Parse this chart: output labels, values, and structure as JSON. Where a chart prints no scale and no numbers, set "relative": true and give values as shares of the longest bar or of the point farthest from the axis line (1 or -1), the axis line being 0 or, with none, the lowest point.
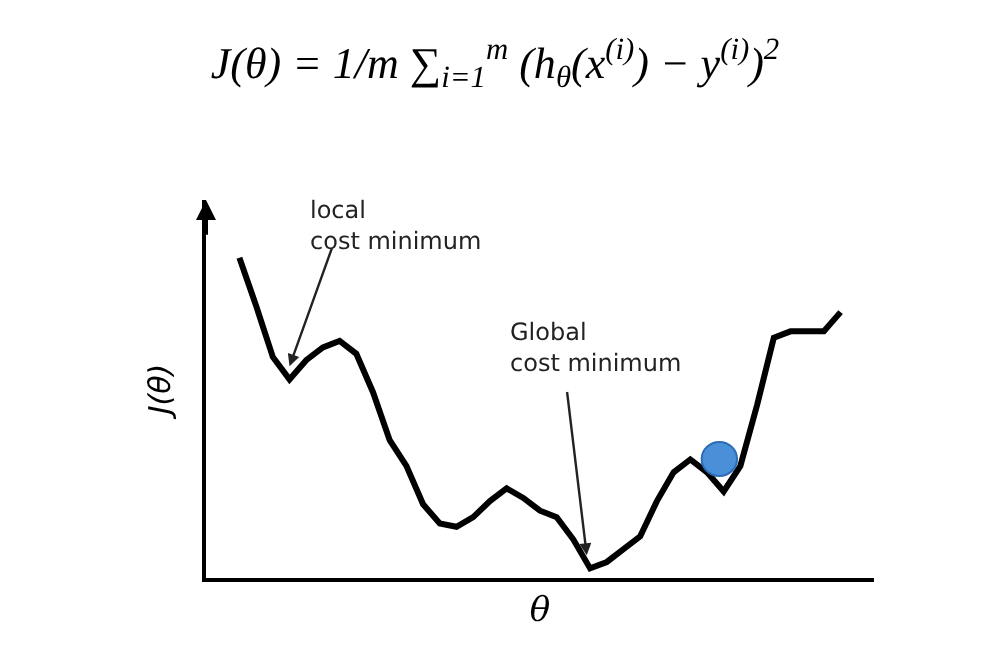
{
  "chart_data": {
    "type": "line",
    "relative": true,
    "title": "J(θ) = 1/m ∑$_{i=1}$$^{m}$ (h$_{θ}$(x$^{(i)}$) − y$^{(i)}$)$^{2}$",
    "xlabel": "θ",
    "ylabel": "J(θ)",
    "categories": [
      null,
      null,
      null,
      null,
      null,
      null,
      null,
      null,
      null,
      null,
      null,
      null,
      null,
      null,
      null,
      null,
      null,
      null,
      null,
      null,
      null,
      null,
      null,
      null,
      null,
      null,
      null,
      null,
      null,
      null,
      null,
      null,
      null,
      null,
      null,
      null,
      null
    ],
    "series": [
      {
        "color": "#000000",
        "values": [
          1.0,
          0.85,
          0.69,
          0.62,
          0.68,
          0.72,
          0.74,
          0.7,
          0.58,
          0.43,
          0.35,
          0.23,
          0.17,
          0.16,
          0.19,
          0.24,
          0.28,
          0.25,
          0.21,
          0.19,
          0.12,
          0.03,
          0.05,
          0.09,
          0.13,
          0.24,
          0.33,
          0.37,
          0.33,
          0.27,
          0.35,
          0.54,
          0.75,
          0.77,
          0.77,
          0.77,
          0.83
        ]
      }
    ],
    "annotations": [
      "local\ncost minimum",
      "Global\ncost minimum"
    ],
    "grid": false,
    "legend": false
  }
}
